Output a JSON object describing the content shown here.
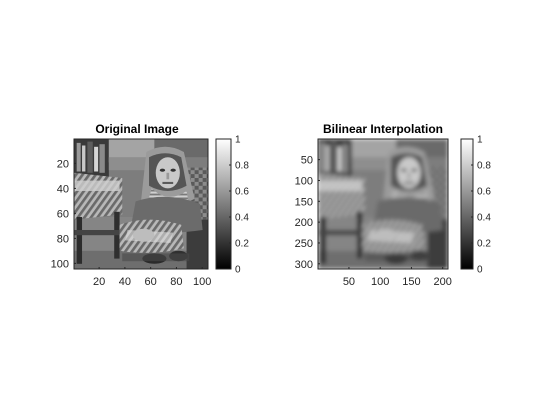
{
  "figure": {
    "background": "#ffffff",
    "axis_color": "#262626",
    "colormap": "gray"
  },
  "chart_data": [
    {
      "type": "heatmap",
      "title": "Original Image",
      "xlabel": "",
      "ylabel": "",
      "image_size": [
        104,
        104
      ],
      "xlim": [
        0.5,
        104.5
      ],
      "ylim": [
        0.5,
        104.5
      ],
      "y_direction": "reverse",
      "xticks": [
        20,
        40,
        60,
        80,
        100
      ],
      "yticks": [
        20,
        40,
        60,
        80,
        100
      ],
      "colorbar": {
        "limits": [
          0,
          1
        ],
        "ticks": [
          0,
          0.2,
          0.4,
          0.6,
          0.8,
          1
        ],
        "tick_labels": [
          "0",
          "0.2",
          "0.4",
          "0.6",
          "0.8",
          "1"
        ]
      },
      "image_content": "grayscale photograph: woman in headscarf sitting on floor next to table, bookshelf in background"
    },
    {
      "type": "heatmap",
      "title": "Bilinear Interpolation",
      "xlabel": "",
      "ylabel": "",
      "image_size": [
        312,
        208
      ],
      "xlim": [
        0.5,
        208.5
      ],
      "ylim": [
        0.5,
        312.5
      ],
      "y_direction": "reverse",
      "xticks": [
        50,
        100,
        150,
        200
      ],
      "yticks": [
        50,
        100,
        150,
        200,
        250,
        300
      ],
      "colorbar": {
        "limits": [
          0,
          1
        ],
        "ticks": [
          0,
          0.2,
          0.4,
          0.6,
          0.8,
          1
        ],
        "tick_labels": [
          "0",
          "0.2",
          "0.4",
          "0.6",
          "0.8",
          "1"
        ]
      },
      "image_content": "bilinearly upsampled version of the same photograph"
    }
  ]
}
